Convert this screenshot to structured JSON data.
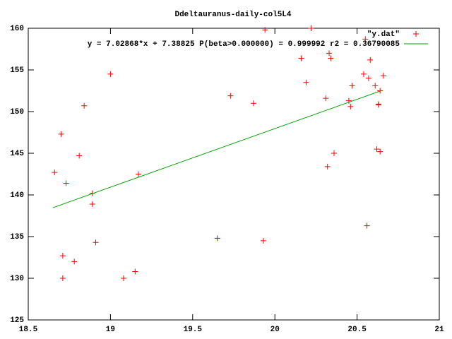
{
  "chart_data": {
    "type": "scatter",
    "title": "Ddeltauranus-daily-col5L4",
    "xlim": [
      18.5,
      21
    ],
    "xticks": [
      18.5,
      19,
      19.5,
      20,
      20.5,
      21
    ],
    "ylim": [
      125,
      160
    ],
    "yticks": [
      125,
      130,
      135,
      140,
      145,
      150,
      155,
      160
    ],
    "legend": "top-right",
    "series": [
      {
        "name": "\"y.dat\"",
        "color": "#ff0000",
        "mode": "points",
        "x": [
          18.66,
          18.7,
          18.73,
          18.71,
          18.71,
          18.78,
          18.81,
          18.84,
          18.89,
          18.89,
          18.91,
          19.0,
          19.08,
          19.15,
          19.17,
          19.65,
          19.73,
          19.87,
          19.93,
          19.94,
          20.16,
          20.19,
          20.22,
          20.31,
          20.32,
          20.33,
          20.34,
          20.36,
          20.45,
          20.46,
          20.47,
          20.54,
          20.55,
          20.56,
          20.57,
          20.58,
          20.61,
          20.62,
          20.63,
          20.63,
          20.64,
          20.64,
          20.66
        ],
        "y": [
          142.7,
          147.3,
          141.4,
          132.7,
          130.0,
          132.0,
          144.7,
          150.7,
          140.2,
          138.9,
          134.3,
          154.5,
          130.0,
          130.8,
          142.5,
          134.8,
          151.9,
          151.0,
          134.5,
          159.8,
          156.4,
          153.5,
          160.0,
          151.6,
          143.4,
          157.0,
          156.4,
          145.0,
          151.3,
          150.6,
          153.1,
          154.5,
          158.7,
          136.3,
          154.0,
          156.2,
          153.1,
          145.5,
          150.9,
          150.8,
          152.5,
          145.2,
          154.3
        ]
      },
      {
        "name": "y = 7.02868*x + 7.38825 P(beta>0.000000) = 0.999992 r2 = 0.36790085",
        "color": "#00a000",
        "mode": "lines",
        "x": [
          18.65,
          20.65
        ],
        "y": [
          138.47,
          152.53
        ]
      }
    ]
  }
}
